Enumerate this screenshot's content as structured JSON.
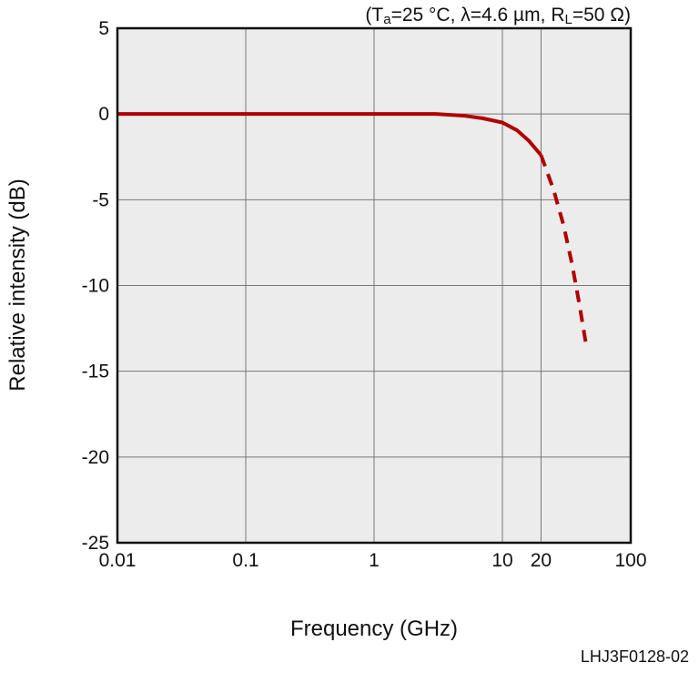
{
  "chart_data": {
    "type": "line",
    "title": "",
    "conditions": {
      "open": "(T",
      "ta_sub": "a",
      "mid": "=25 °C, λ=4.6 µm, R",
      "rl_sub": "L",
      "close": "=50 Ω)"
    },
    "figure_code": "LHJ3F0128-02",
    "xlabel": "Frequency (GHz)",
    "ylabel": "Relative intensity (dB)",
    "x_scale": "log",
    "xlim": [
      0.01,
      100
    ],
    "ylim": [
      -25,
      5
    ],
    "x_ticks": [
      {
        "value": 0.01,
        "label": "0.01"
      },
      {
        "value": 0.1,
        "label": "0.1"
      },
      {
        "value": 1,
        "label": "1"
      },
      {
        "value": 10,
        "label": "10"
      },
      {
        "value": 20,
        "label": "20"
      },
      {
        "value": 100,
        "label": "100"
      }
    ],
    "y_ticks": [
      {
        "value": 5,
        "label": "5"
      },
      {
        "value": 0,
        "label": "0"
      },
      {
        "value": -5,
        "label": "-5"
      },
      {
        "value": -10,
        "label": "-10"
      },
      {
        "value": -15,
        "label": "-15"
      },
      {
        "value": -20,
        "label": "-20"
      },
      {
        "value": -25,
        "label": "-25"
      }
    ],
    "grid": true,
    "series": [
      {
        "style": "solid",
        "color": "#b00000",
        "x": [
          0.01,
          0.1,
          1,
          3,
          5,
          7,
          10,
          13,
          16,
          20
        ],
        "y": [
          0,
          0,
          0,
          0,
          -0.1,
          -0.25,
          -0.5,
          -0.95,
          -1.55,
          -2.4
        ]
      },
      {
        "style": "dashed",
        "color": "#b00000",
        "x": [
          20,
          25,
          30,
          35,
          40,
          45
        ],
        "y": [
          -2.4,
          -4.4,
          -6.5,
          -8.8,
          -11.2,
          -13.5
        ]
      }
    ]
  }
}
